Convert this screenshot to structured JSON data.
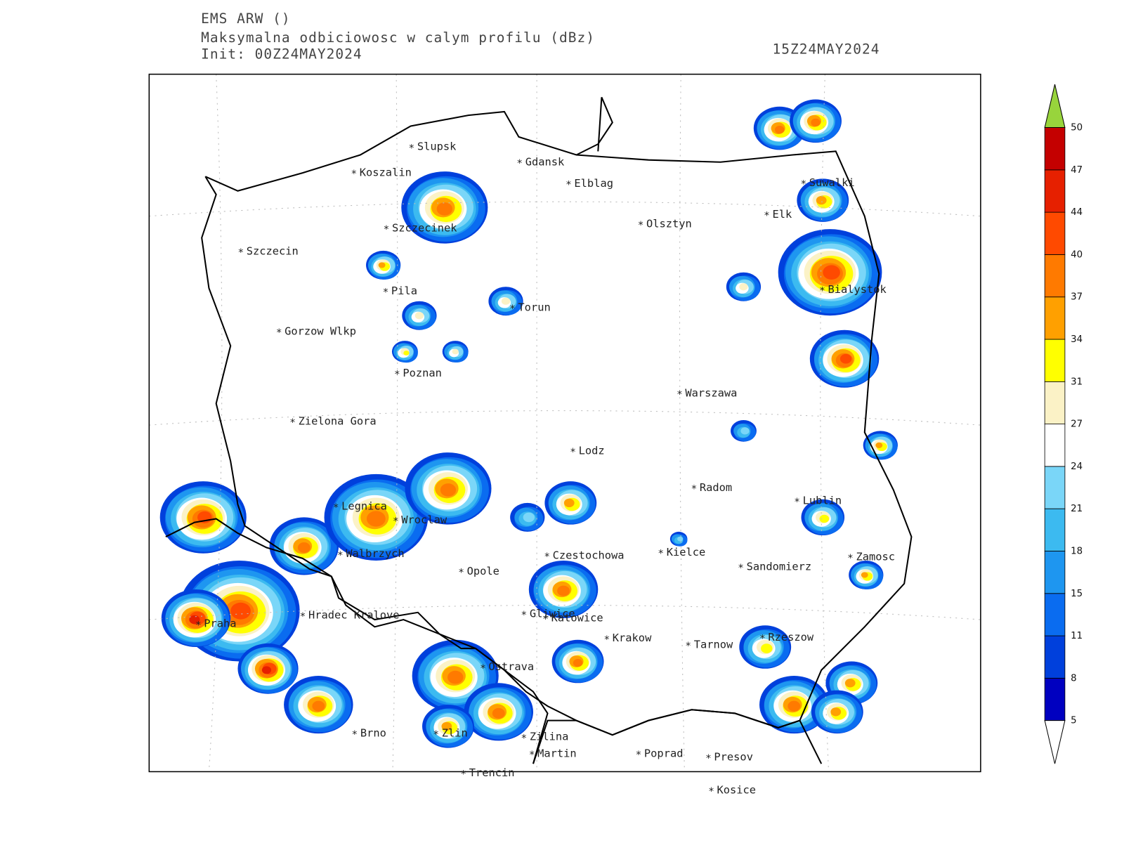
{
  "header": {
    "model": "EMS ARW ()",
    "field": "Maksymalna odbiciowosc w calym profilu (dBz)",
    "init": "Init: 00Z24MAY2024",
    "valid": "15Z24MAY2024"
  },
  "cities": [
    "Slupsk",
    "Koszalin",
    "Gdansk",
    "Elblag",
    "Suwalki",
    "Elk",
    "Olsztyn",
    "Szczecinek",
    "Szczecin",
    "Bialystok",
    "Pila",
    "Torun",
    "Gorzow Wlkp",
    "Poznan",
    "Warszawa",
    "Zielona Gora",
    "Lodz",
    "Radom",
    "Lublin",
    "Legnica",
    "Wroclaw",
    "Czestochowa",
    "Kielce",
    "Walbrzych",
    "Zamosc",
    "Opole",
    "Sandomierz",
    "Hradec Kralove",
    "Gliwice",
    "Katowice",
    "Praha",
    "Krakow",
    "Rzeszow",
    "Tarnow",
    "Ostrava",
    "Brno",
    "Zlin",
    "Zilina",
    "Martin",
    "Poprad",
    "Presov",
    "Trencin",
    "Kosice"
  ],
  "colorbar": {
    "levels": [
      5,
      8,
      11,
      15,
      18,
      21,
      24,
      27,
      31,
      34,
      37,
      40,
      44,
      47,
      50
    ],
    "colors": [
      "#0000c0",
      "#0040dc",
      "#0a6cf0",
      "#1e96f0",
      "#3cbaf0",
      "#7ad6f8",
      "#ffffff",
      "#fbf2c6",
      "#ffff00",
      "#ffa000",
      "#ff7a00",
      "#ff4a00",
      "#e62000",
      "#c40000"
    ],
    "over_color": "#98d43c",
    "under_color": "#ffffff"
  }
}
